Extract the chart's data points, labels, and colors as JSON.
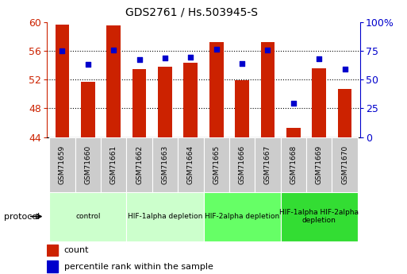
{
  "title": "GDS2761 / Hs.503945-S",
  "samples": [
    "GSM71659",
    "GSM71660",
    "GSM71661",
    "GSM71662",
    "GSM71663",
    "GSM71664",
    "GSM71665",
    "GSM71666",
    "GSM71667",
    "GSM71668",
    "GSM71669",
    "GSM71670"
  ],
  "bar_values": [
    59.6,
    51.7,
    59.5,
    53.4,
    53.8,
    54.3,
    57.2,
    51.9,
    57.2,
    45.3,
    53.5,
    50.7
  ],
  "dot_values": [
    75.0,
    63.0,
    75.5,
    67.0,
    68.5,
    69.5,
    76.5,
    64.0,
    75.5,
    29.0,
    68.0,
    59.0
  ],
  "bar_bottom": 44,
  "ylim_left": [
    44,
    60
  ],
  "ylim_right": [
    0,
    100
  ],
  "yticks_left": [
    44,
    48,
    52,
    56,
    60
  ],
  "yticks_right": [
    0,
    25,
    50,
    75,
    100
  ],
  "bar_color": "#cc2200",
  "dot_color": "#0000cc",
  "tick_label_color_left": "#cc2200",
  "tick_label_color_right": "#0000cc",
  "groups": [
    {
      "label": "control",
      "start": 0,
      "end": 2,
      "color": "#ccffcc"
    },
    {
      "label": "HIF-1alpha depletion",
      "start": 3,
      "end": 5,
      "color": "#ccffcc"
    },
    {
      "label": "HIF-2alpha depletion",
      "start": 6,
      "end": 8,
      "color": "#66ff66"
    },
    {
      "label": "HIF-1alpha HIF-2alpha\ndepletion",
      "start": 9,
      "end": 11,
      "color": "#33dd33"
    }
  ],
  "protocol_label": "protocol",
  "legend_count_label": "count",
  "legend_pct_label": "percentile rank within the sample",
  "sample_box_color": "#cccccc",
  "grid_yticks": [
    48,
    52,
    56
  ]
}
